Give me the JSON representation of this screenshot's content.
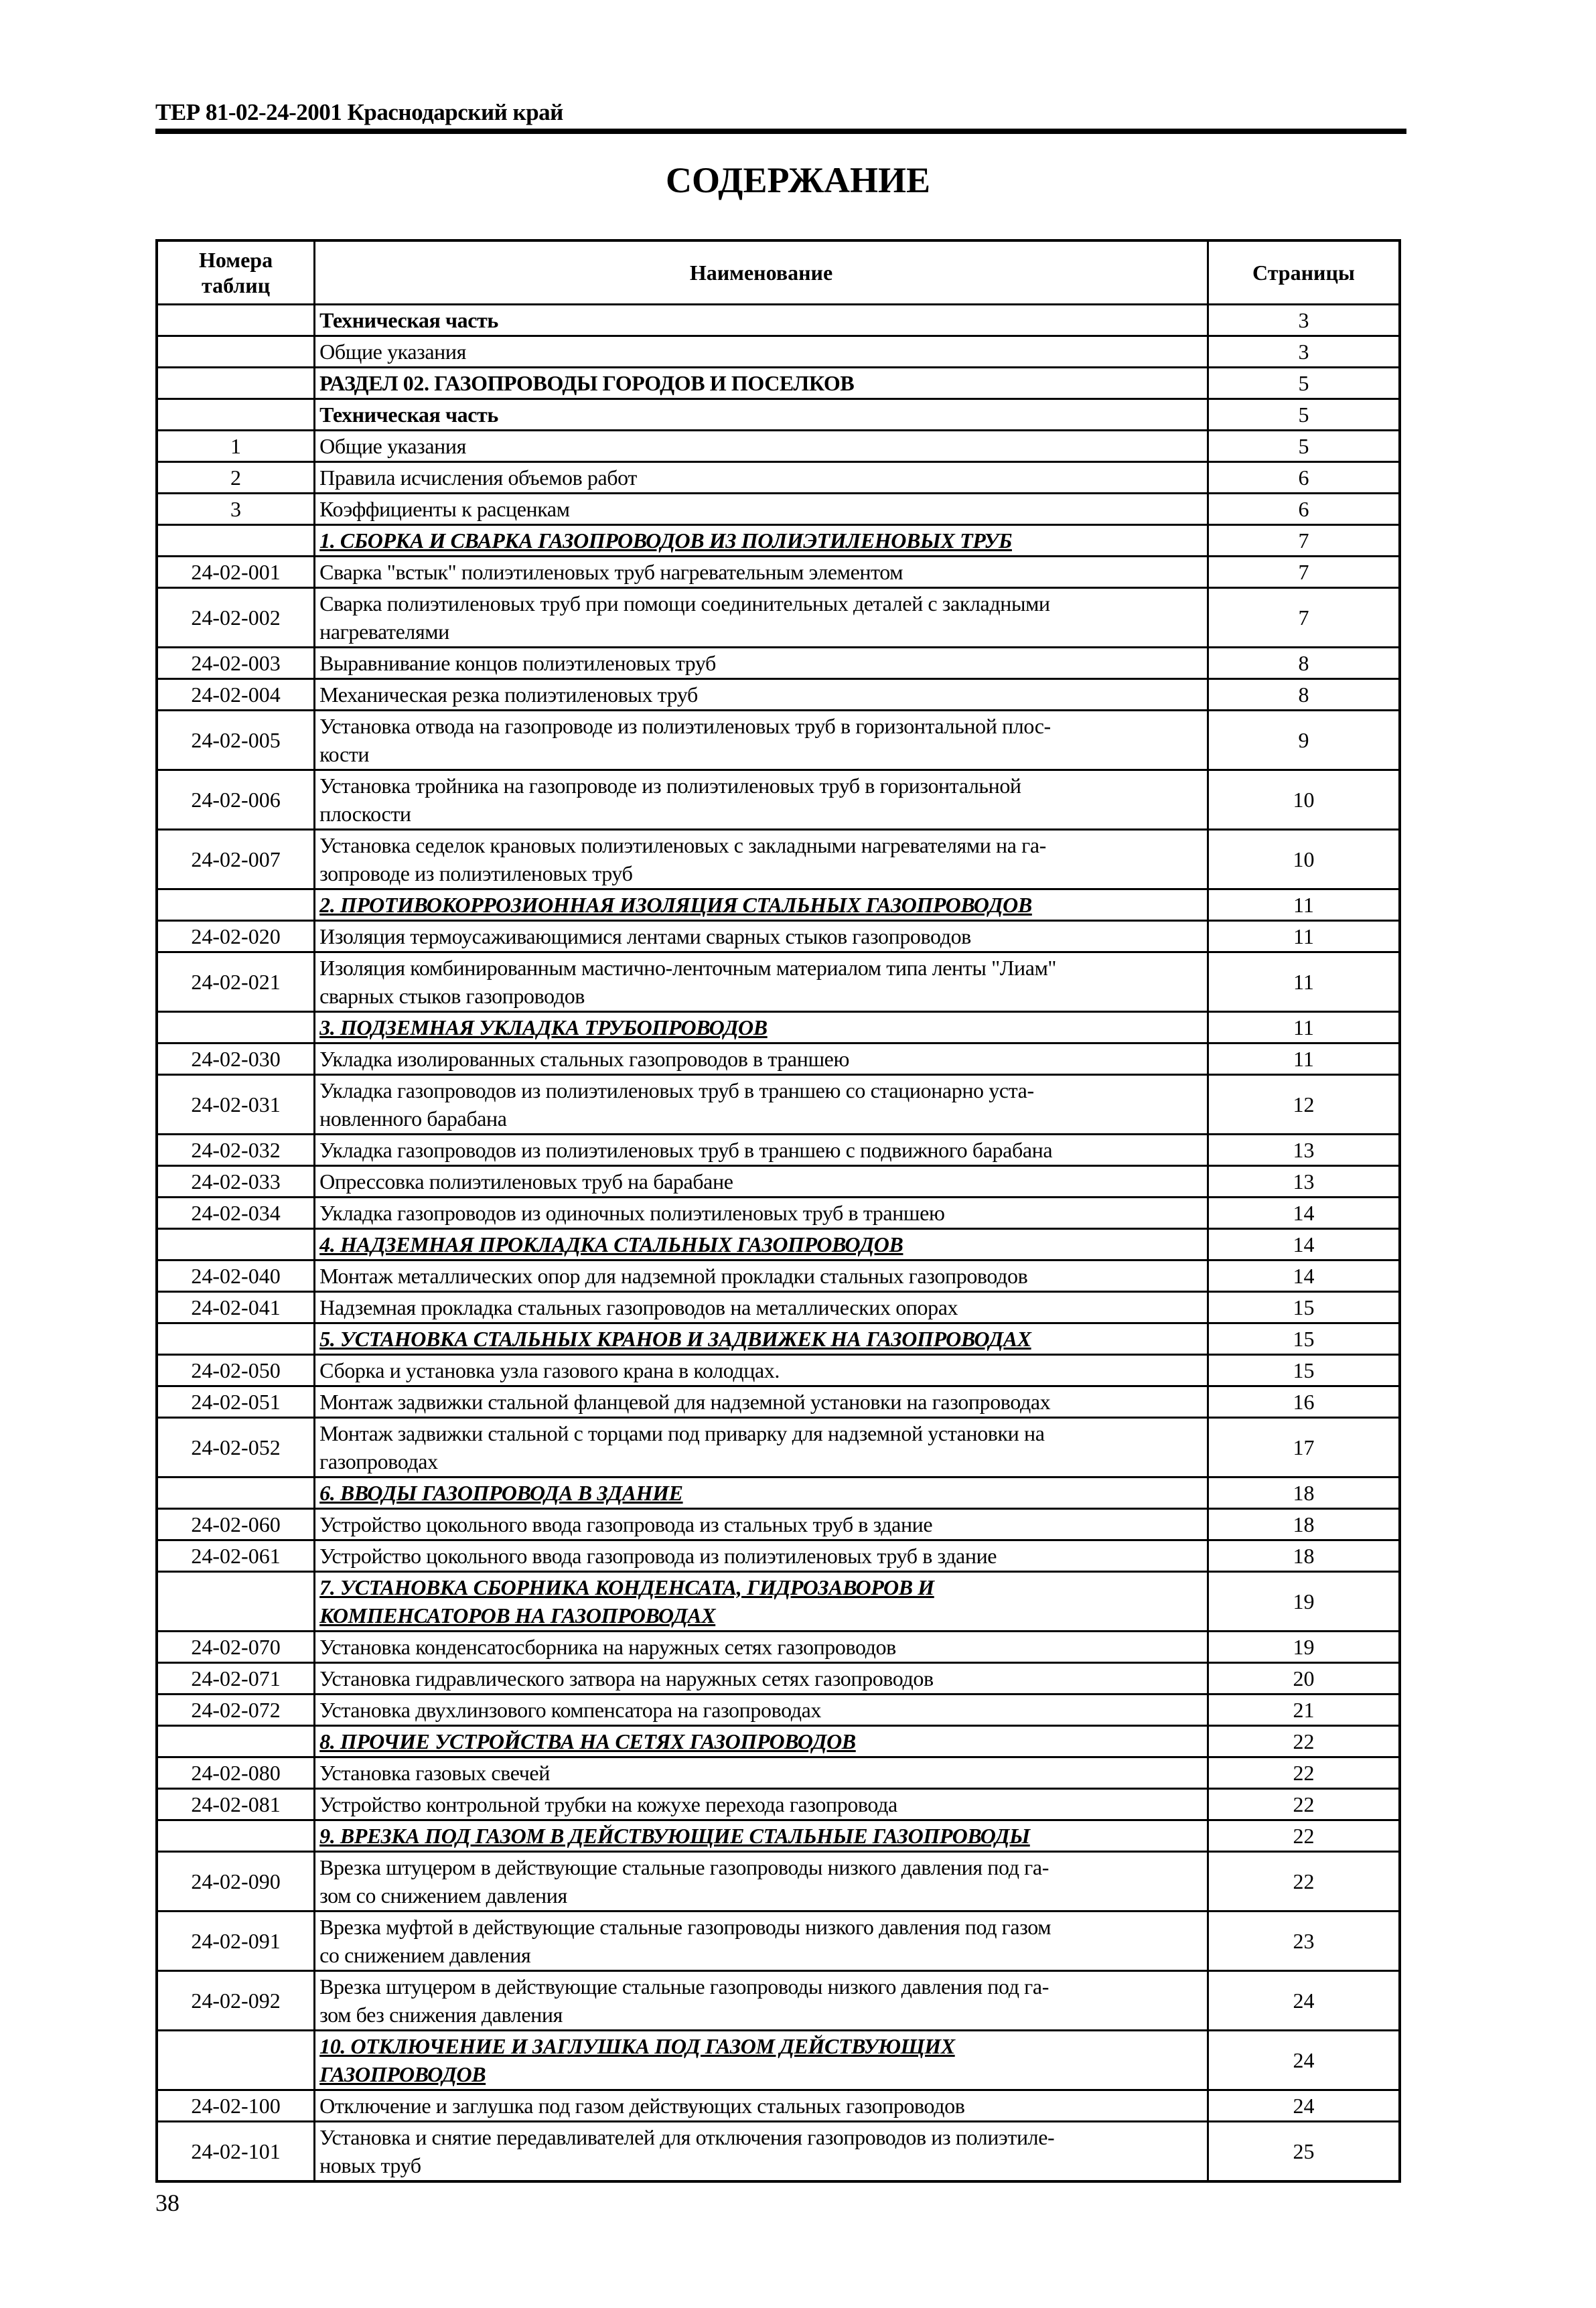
{
  "running_header": "ТЕР 81-02-24-2001 Краснодарский край",
  "title": "СОДЕРЖАНИЕ",
  "page_number": "38",
  "table": {
    "headers": [
      "Номера\nтаблиц",
      "Наименование",
      "Страницы"
    ],
    "rows": [
      {
        "num": "",
        "name": "Техническая часть",
        "page": "3",
        "style": "bold"
      },
      {
        "num": "",
        "name": "Общие указания",
        "page": "3",
        "style": "normal"
      },
      {
        "num": "",
        "name": "РАЗДЕЛ 02. ГАЗОПРОВОДЫ ГОРОДОВ И ПОСЕЛКОВ",
        "page": "5",
        "style": "bold"
      },
      {
        "num": "",
        "name": "Техническая часть",
        "page": "5",
        "style": "bold"
      },
      {
        "num": "1",
        "name": "Общие указания",
        "page": "5",
        "style": "normal"
      },
      {
        "num": "2",
        "name": "Правила исчисления объемов работ",
        "page": "6",
        "style": "normal"
      },
      {
        "num": "3",
        "name": "Коэффициенты к расценкам",
        "page": "6",
        "style": "normal"
      },
      {
        "num": "",
        "name": "1. СБОРКА И СВАРКА ГАЗОПРОВОДОВ ИЗ ПОЛИЭТИЛЕНОВЫХ ТРУБ",
        "page": "7",
        "style": "section"
      },
      {
        "num": "24-02-001",
        "name": "Сварка \"встык\" полиэтиленовых труб нагревательным элементом",
        "page": "7",
        "style": "normal"
      },
      {
        "num": "24-02-002",
        "name": "Сварка полиэтиленовых труб при помощи соединительных деталей с закладными\nнагревателями",
        "page": "7",
        "style": "normal"
      },
      {
        "num": "24-02-003",
        "name": "Выравнивание концов полиэтиленовых труб",
        "page": "8",
        "style": "normal"
      },
      {
        "num": "24-02-004",
        "name": "Механическая резка полиэтиленовых труб",
        "page": "8",
        "style": "normal"
      },
      {
        "num": "24-02-005",
        "name": "Установка отвода на газопроводе из полиэтиленовых труб в горизонтальной плос-\nкости",
        "page": "9",
        "style": "normal"
      },
      {
        "num": "24-02-006",
        "name": "Установка тройника на газопроводе из полиэтиленовых труб в горизонтальной\nплоскости",
        "page": "10",
        "style": "normal"
      },
      {
        "num": "24-02-007",
        "name": "Установка седелок крановых полиэтиленовых с закладными нагревателями на га-\nзопроводе из полиэтиленовых труб",
        "page": "10",
        "style": "normal"
      },
      {
        "num": "",
        "name": "2. ПРОТИВОКОРРОЗИОННАЯ ИЗОЛЯЦИЯ СТАЛЬНЫХ ГАЗОПРОВОДОВ",
        "page": "11",
        "style": "section"
      },
      {
        "num": "24-02-020",
        "name": "Изоляция термоусаживающимися лентами сварных стыков газопроводов",
        "page": "11",
        "style": "normal"
      },
      {
        "num": "24-02-021",
        "name": "Изоляция комбинированным мастично-ленточным материалом типа ленты \"Лиам\"\nсварных стыков газопроводов",
        "page": "11",
        "style": "normal"
      },
      {
        "num": "",
        "name": "3. ПОДЗЕМНАЯ УКЛАДКА ТРУБОПРОВОДОВ",
        "page": "11",
        "style": "section"
      },
      {
        "num": "24-02-030",
        "name": "Укладка изолированных стальных газопроводов в траншею",
        "page": "11",
        "style": "normal"
      },
      {
        "num": "24-02-031",
        "name": "Укладка газопроводов из полиэтиленовых труб в траншею со стационарно уста-\nновленного барабана",
        "page": "12",
        "style": "normal"
      },
      {
        "num": "24-02-032",
        "name": "Укладка газопроводов из полиэтиленовых труб в траншею с подвижного барабана",
        "page": "13",
        "style": "normal"
      },
      {
        "num": "24-02-033",
        "name": "Опрессовка полиэтиленовых труб на барабане",
        "page": "13",
        "style": "normal"
      },
      {
        "num": "24-02-034",
        "name": "Укладка газопроводов из одиночных полиэтиленовых труб в траншею",
        "page": "14",
        "style": "normal"
      },
      {
        "num": "",
        "name": "4. НАДЗЕМНАЯ ПРОКЛАДКА СТАЛЬНЫХ ГАЗОПРОВОДОВ",
        "page": "14",
        "style": "section"
      },
      {
        "num": "24-02-040",
        "name": "Монтаж металлических опор для надземной прокладки стальных газопроводов",
        "page": "14",
        "style": "normal"
      },
      {
        "num": "24-02-041",
        "name": "Надземная прокладка стальных газопроводов на металлических опорах",
        "page": "15",
        "style": "normal"
      },
      {
        "num": "",
        "name": "5. УСТАНОВКА СТАЛЬНЫХ КРАНОВ И ЗАДВИЖЕК НА ГАЗОПРОВОДАХ",
        "page": "15",
        "style": "section"
      },
      {
        "num": "24-02-050",
        "name": "Сборка и установка узла газового крана в колодцах.",
        "page": "15",
        "style": "normal"
      },
      {
        "num": "24-02-051",
        "name": "Монтаж задвижки стальной фланцевой для надземной установки на газопроводах",
        "page": "16",
        "style": "normal"
      },
      {
        "num": "24-02-052",
        "name": "Монтаж задвижки стальной с торцами под приварку для надземной установки на\nгазопроводах",
        "page": "17",
        "style": "normal"
      },
      {
        "num": "",
        "name": "6. ВВОДЫ ГАЗОПРОВОДА В ЗДАНИЕ",
        "page": "18",
        "style": "section"
      },
      {
        "num": "24-02-060",
        "name": "Устройство цокольного ввода газопровода из стальных труб в здание",
        "page": "18",
        "style": "normal"
      },
      {
        "num": "24-02-061",
        "name": "Устройство цокольного ввода газопровода из полиэтиленовых труб в здание",
        "page": "18",
        "style": "normal"
      },
      {
        "num": "",
        "name": "7. УСТАНОВКА СБОРНИКА КОНДЕНСАТА, ГИДРОЗАВОРОВ И\nКОМПЕНСАТОРОВ НА ГАЗОПРОВОДАХ",
        "page": "19",
        "style": "section"
      },
      {
        "num": "24-02-070",
        "name": "Установка конденсатосборника на наружных сетях газопроводов",
        "page": "19",
        "style": "normal"
      },
      {
        "num": "24-02-071",
        "name": "Установка гидравлического затвора на наружных сетях газопроводов",
        "page": "20",
        "style": "normal"
      },
      {
        "num": "24-02-072",
        "name": "Установка двухлинзового компенсатора на газопроводах",
        "page": "21",
        "style": "normal"
      },
      {
        "num": "",
        "name": "8. ПРОЧИЕ УСТРОЙСТВА НА СЕТЯХ ГАЗОПРОВОДОВ",
        "page": "22",
        "style": "section"
      },
      {
        "num": "24-02-080",
        "name": "Установка газовых свечей",
        "page": "22",
        "style": "normal"
      },
      {
        "num": "24-02-081",
        "name": "Устройство контрольной трубки на кожухе перехода газопровода",
        "page": "22",
        "style": "normal"
      },
      {
        "num": "",
        "name": "9. ВРЕЗКА ПОД ГАЗОМ В ДЕЙСТВУЮЩИЕ СТАЛЬНЫЕ ГАЗОПРОВОДЫ",
        "page": "22",
        "style": "section"
      },
      {
        "num": "24-02-090",
        "name": "Врезка штуцером в действующие стальные газопроводы низкого давления под га-\nзом со снижением давления",
        "page": "22",
        "style": "normal"
      },
      {
        "num": "24-02-091",
        "name": "Врезка муфтой в действующие стальные газопроводы низкого давления под газом\nсо снижением давления",
        "page": "23",
        "style": "normal"
      },
      {
        "num": "24-02-092",
        "name": "Врезка штуцером в действующие стальные газопроводы низкого давления под га-\nзом без снижения давления",
        "page": "24",
        "style": "normal"
      },
      {
        "num": "",
        "name": "10. ОТКЛЮЧЕНИЕ И ЗАГЛУШКА ПОД ГАЗОМ ДЕЙСТВУЮЩИХ\nГАЗОПРОВОДОВ",
        "page": "24",
        "style": "section"
      },
      {
        "num": "24-02-100",
        "name": "Отключение и заглушка под газом действующих стальных газопроводов",
        "page": "24",
        "style": "normal"
      },
      {
        "num": "24-02-101",
        "name": "Установка и снятие передавливателей для отключения газопроводов из полиэтиле-\nновых труб",
        "page": "25",
        "style": "normal"
      }
    ]
  }
}
